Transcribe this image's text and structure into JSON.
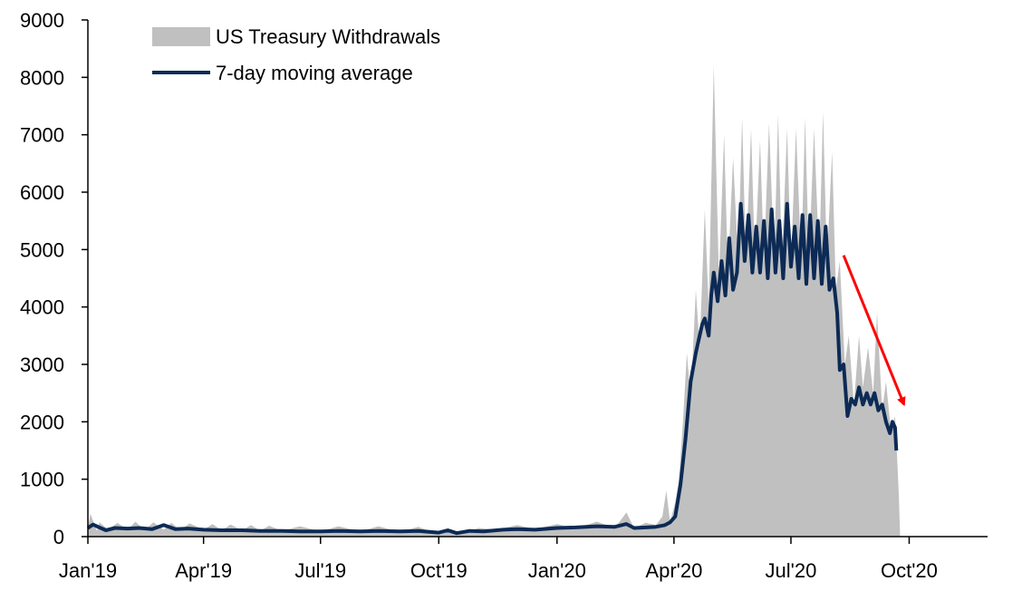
{
  "chart_data": {
    "type": "area",
    "x_type": "date",
    "xlim": [
      "2019-01-01",
      "2020-12-01"
    ],
    "ylim": [
      0,
      9000
    ],
    "yticks": [
      0,
      1000,
      2000,
      3000,
      4000,
      5000,
      6000,
      7000,
      8000,
      9000
    ],
    "xticks": [
      {
        "date": "2019-01-01",
        "label": "Jan'19"
      },
      {
        "date": "2019-04-01",
        "label": "Apr'19"
      },
      {
        "date": "2019-07-01",
        "label": "Jul'19"
      },
      {
        "date": "2019-10-01",
        "label": "Oct'19"
      },
      {
        "date": "2020-01-01",
        "label": "Jan'20"
      },
      {
        "date": "2020-04-01",
        "label": "Apr'20"
      },
      {
        "date": "2020-07-01",
        "label": "Jul'20"
      },
      {
        "date": "2020-10-01",
        "label": "Oct'20"
      }
    ],
    "grid": false,
    "legend": "top-left",
    "series": [
      {
        "name": "US Treasury Withdrawals",
        "style": "area",
        "color": "#c0c0c0",
        "points": [
          [
            "2019-01-01",
            150
          ],
          [
            "2019-01-03",
            400
          ],
          [
            "2019-01-08",
            100
          ],
          [
            "2019-01-10",
            250
          ],
          [
            "2019-01-17",
            120
          ],
          [
            "2019-01-24",
            240
          ],
          [
            "2019-02-01",
            120
          ],
          [
            "2019-02-07",
            260
          ],
          [
            "2019-02-14",
            110
          ],
          [
            "2019-02-21",
            250
          ],
          [
            "2019-03-01",
            120
          ],
          [
            "2019-03-07",
            240
          ],
          [
            "2019-03-14",
            110
          ],
          [
            "2019-03-21",
            230
          ],
          [
            "2019-04-01",
            120
          ],
          [
            "2019-04-08",
            220
          ],
          [
            "2019-04-15",
            110
          ],
          [
            "2019-04-22",
            210
          ],
          [
            "2019-05-01",
            110
          ],
          [
            "2019-05-08",
            200
          ],
          [
            "2019-05-15",
            100
          ],
          [
            "2019-05-22",
            190
          ],
          [
            "2019-06-01",
            100
          ],
          [
            "2019-06-15",
            180
          ],
          [
            "2019-07-01",
            90
          ],
          [
            "2019-07-15",
            180
          ],
          [
            "2019-08-01",
            90
          ],
          [
            "2019-08-15",
            180
          ],
          [
            "2019-09-01",
            80
          ],
          [
            "2019-09-15",
            170
          ],
          [
            "2019-10-01",
            40
          ],
          [
            "2019-10-10",
            130
          ],
          [
            "2019-10-20",
            60
          ],
          [
            "2019-11-01",
            150
          ],
          [
            "2019-11-15",
            120
          ],
          [
            "2019-12-01",
            200
          ],
          [
            "2019-12-15",
            130
          ],
          [
            "2020-01-01",
            220
          ],
          [
            "2020-01-15",
            140
          ],
          [
            "2020-02-01",
            260
          ],
          [
            "2020-02-15",
            150
          ],
          [
            "2020-02-24",
            420
          ],
          [
            "2020-03-01",
            150
          ],
          [
            "2020-03-10",
            240
          ],
          [
            "2020-03-18",
            200
          ],
          [
            "2020-03-23",
            350
          ],
          [
            "2020-03-26",
            800
          ],
          [
            "2020-03-29",
            250
          ],
          [
            "2020-04-02",
            600
          ],
          [
            "2020-04-05",
            1000
          ],
          [
            "2020-04-08",
            2000
          ],
          [
            "2020-04-11",
            3200
          ],
          [
            "2020-04-14",
            2400
          ],
          [
            "2020-04-18",
            4300
          ],
          [
            "2020-04-21",
            3300
          ],
          [
            "2020-04-25",
            5700
          ],
          [
            "2020-04-28",
            4000
          ],
          [
            "2020-05-02",
            8200
          ],
          [
            "2020-05-06",
            4500
          ],
          [
            "2020-05-10",
            7000
          ],
          [
            "2020-05-13",
            4600
          ],
          [
            "2020-05-17",
            6600
          ],
          [
            "2020-05-21",
            4800
          ],
          [
            "2020-05-24",
            7300
          ],
          [
            "2020-05-27",
            4800
          ],
          [
            "2020-05-31",
            7100
          ],
          [
            "2020-06-03",
            4800
          ],
          [
            "2020-06-07",
            6900
          ],
          [
            "2020-06-10",
            4800
          ],
          [
            "2020-06-14",
            7200
          ],
          [
            "2020-06-18",
            4800
          ],
          [
            "2020-06-21",
            7350
          ],
          [
            "2020-06-24",
            4800
          ],
          [
            "2020-06-28",
            7100
          ],
          [
            "2020-07-01",
            4800
          ],
          [
            "2020-07-05",
            7100
          ],
          [
            "2020-07-09",
            4800
          ],
          [
            "2020-07-12",
            7300
          ],
          [
            "2020-07-15",
            4800
          ],
          [
            "2020-07-19",
            7100
          ],
          [
            "2020-07-23",
            4800
          ],
          [
            "2020-07-26",
            7400
          ],
          [
            "2020-07-29",
            4800
          ],
          [
            "2020-08-02",
            6700
          ],
          [
            "2020-08-05",
            4300
          ],
          [
            "2020-08-08",
            4800
          ],
          [
            "2020-08-12",
            3000
          ],
          [
            "2020-08-15",
            3500
          ],
          [
            "2020-08-19",
            2300
          ],
          [
            "2020-08-23",
            3500
          ],
          [
            "2020-08-26",
            2600
          ],
          [
            "2020-08-30",
            3300
          ],
          [
            "2020-09-03",
            2500
          ],
          [
            "2020-09-06",
            3900
          ],
          [
            "2020-09-10",
            2200
          ],
          [
            "2020-09-13",
            2700
          ],
          [
            "2020-09-17",
            1800
          ],
          [
            "2020-09-20",
            2100
          ],
          [
            "2020-09-22",
            1200
          ],
          [
            "2020-09-23",
            700
          ],
          [
            "2020-09-24",
            0
          ]
        ]
      },
      {
        "name": "7-day moving average",
        "style": "line",
        "color": "#0c2a55",
        "points": [
          [
            "2019-01-01",
            150
          ],
          [
            "2019-01-05",
            210
          ],
          [
            "2019-01-10",
            160
          ],
          [
            "2019-01-15",
            110
          ],
          [
            "2019-01-22",
            150
          ],
          [
            "2019-02-01",
            140
          ],
          [
            "2019-02-10",
            150
          ],
          [
            "2019-02-20",
            130
          ],
          [
            "2019-03-01",
            200
          ],
          [
            "2019-03-10",
            130
          ],
          [
            "2019-03-20",
            140
          ],
          [
            "2019-04-01",
            120
          ],
          [
            "2019-04-15",
            110
          ],
          [
            "2019-05-01",
            110
          ],
          [
            "2019-05-15",
            100
          ],
          [
            "2019-06-01",
            100
          ],
          [
            "2019-06-15",
            90
          ],
          [
            "2019-07-01",
            90
          ],
          [
            "2019-07-15",
            100
          ],
          [
            "2019-08-01",
            90
          ],
          [
            "2019-08-15",
            100
          ],
          [
            "2019-09-01",
            90
          ],
          [
            "2019-09-15",
            100
          ],
          [
            "2019-10-01",
            70
          ],
          [
            "2019-10-08",
            110
          ],
          [
            "2019-10-15",
            60
          ],
          [
            "2019-10-25",
            100
          ],
          [
            "2019-11-05",
            90
          ],
          [
            "2019-11-20",
            120
          ],
          [
            "2019-12-01",
            130
          ],
          [
            "2019-12-15",
            120
          ],
          [
            "2020-01-01",
            150
          ],
          [
            "2020-01-15",
            160
          ],
          [
            "2020-02-01",
            180
          ],
          [
            "2020-02-15",
            170
          ],
          [
            "2020-02-24",
            220
          ],
          [
            "2020-03-01",
            150
          ],
          [
            "2020-03-10",
            160
          ],
          [
            "2020-03-18",
            170
          ],
          [
            "2020-03-25",
            200
          ],
          [
            "2020-03-29",
            250
          ],
          [
            "2020-04-02",
            350
          ],
          [
            "2020-04-06",
            900
          ],
          [
            "2020-04-10",
            1700
          ],
          [
            "2020-04-14",
            2700
          ],
          [
            "2020-04-18",
            3200
          ],
          [
            "2020-04-21",
            3500
          ],
          [
            "2020-04-23",
            3700
          ],
          [
            "2020-04-25",
            3800
          ],
          [
            "2020-04-28",
            3500
          ],
          [
            "2020-04-30",
            4200
          ],
          [
            "2020-05-02",
            4600
          ],
          [
            "2020-05-05",
            4100
          ],
          [
            "2020-05-08",
            4800
          ],
          [
            "2020-05-11",
            4200
          ],
          [
            "2020-05-14",
            5200
          ],
          [
            "2020-05-17",
            4300
          ],
          [
            "2020-05-20",
            4600
          ],
          [
            "2020-05-23",
            5800
          ],
          [
            "2020-05-26",
            4800
          ],
          [
            "2020-05-29",
            5600
          ],
          [
            "2020-06-01",
            4600
          ],
          [
            "2020-06-04",
            5400
          ],
          [
            "2020-06-07",
            4600
          ],
          [
            "2020-06-10",
            5500
          ],
          [
            "2020-06-13",
            4500
          ],
          [
            "2020-06-16",
            5700
          ],
          [
            "2020-06-19",
            4600
          ],
          [
            "2020-06-22",
            5500
          ],
          [
            "2020-06-25",
            4500
          ],
          [
            "2020-06-28",
            5800
          ],
          [
            "2020-07-01",
            4700
          ],
          [
            "2020-07-04",
            5400
          ],
          [
            "2020-07-07",
            4500
          ],
          [
            "2020-07-10",
            5600
          ],
          [
            "2020-07-13",
            4400
          ],
          [
            "2020-07-16",
            5600
          ],
          [
            "2020-07-19",
            4500
          ],
          [
            "2020-07-22",
            5500
          ],
          [
            "2020-07-25",
            4400
          ],
          [
            "2020-07-28",
            5400
          ],
          [
            "2020-07-31",
            4300
          ],
          [
            "2020-08-03",
            4500
          ],
          [
            "2020-08-06",
            3900
          ],
          [
            "2020-08-08",
            2900
          ],
          [
            "2020-08-11",
            3000
          ],
          [
            "2020-08-14",
            2100
          ],
          [
            "2020-08-17",
            2400
          ],
          [
            "2020-08-20",
            2300
          ],
          [
            "2020-08-23",
            2600
          ],
          [
            "2020-08-26",
            2300
          ],
          [
            "2020-08-29",
            2500
          ],
          [
            "2020-09-01",
            2300
          ],
          [
            "2020-09-04",
            2500
          ],
          [
            "2020-09-07",
            2200
          ],
          [
            "2020-09-10",
            2300
          ],
          [
            "2020-09-13",
            2000
          ],
          [
            "2020-09-16",
            1800
          ],
          [
            "2020-09-18",
            2000
          ],
          [
            "2020-09-20",
            1900
          ],
          [
            "2020-09-21",
            1500
          ]
        ]
      }
    ],
    "annotations": [
      {
        "type": "arrow",
        "color": "#ff0000",
        "from": [
          "2020-08-11",
          4900
        ],
        "to": [
          "2020-09-27",
          2300
        ]
      }
    ]
  }
}
